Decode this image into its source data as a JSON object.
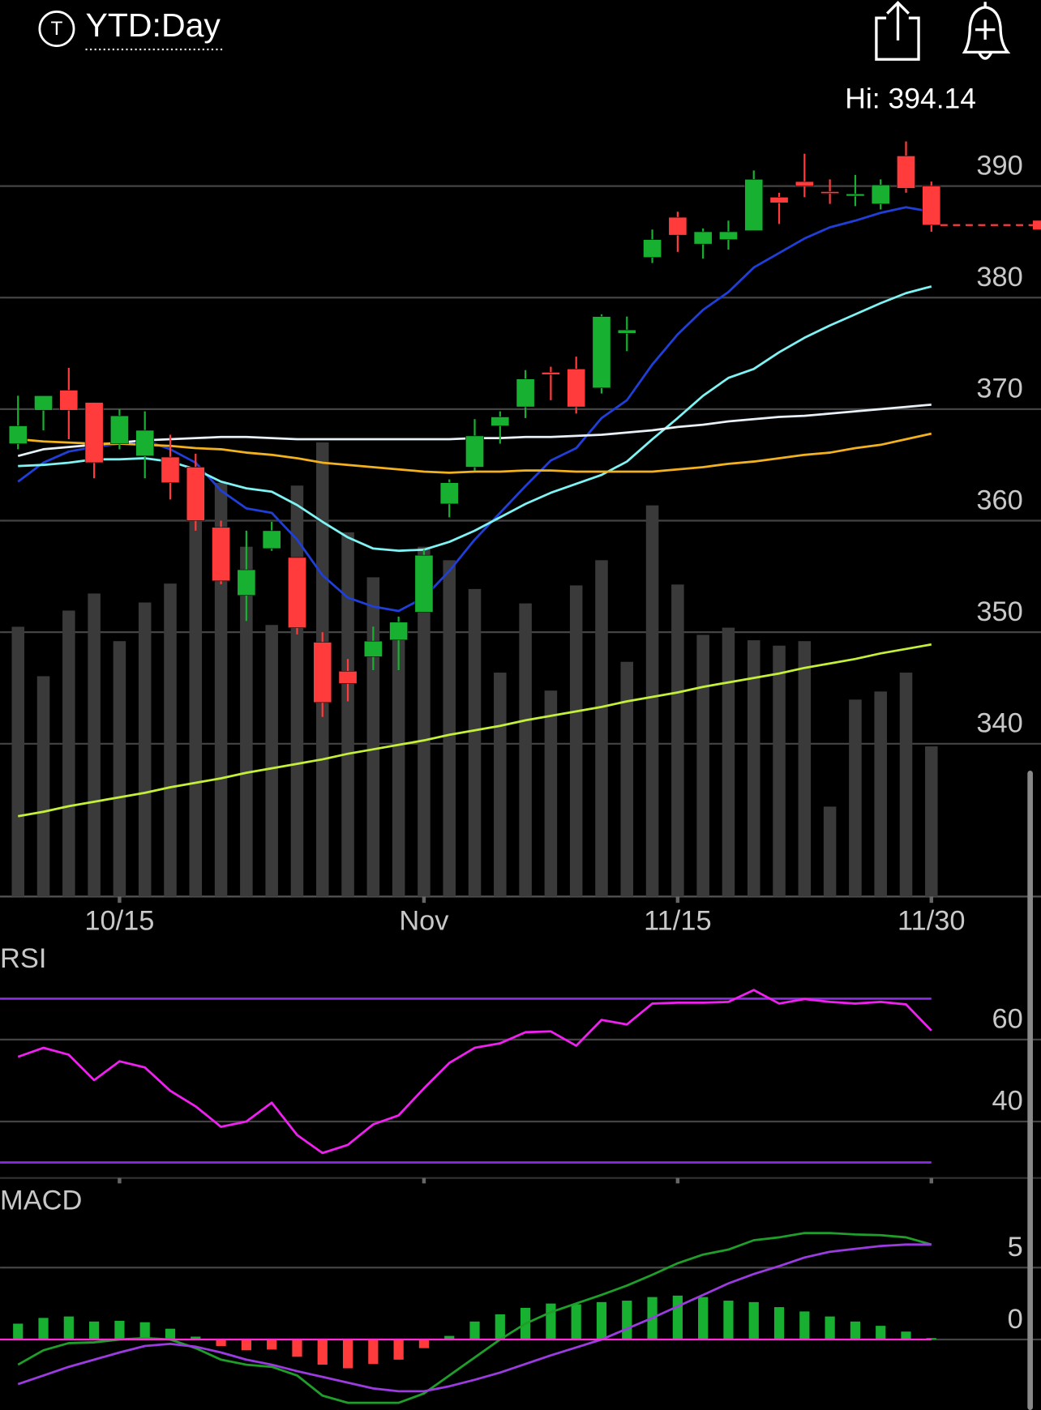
{
  "header": {
    "icon_label": "T",
    "title": "YTD:Day",
    "high_label": "Hi: 394.14"
  },
  "chart_data": [
    {
      "type": "candlestick",
      "categories": [
        null,
        null,
        null,
        null,
        "10/15",
        null,
        null,
        null,
        null,
        null,
        null,
        null,
        null,
        null,
        null,
        null,
        "Nov",
        null,
        null,
        null,
        null,
        null,
        null,
        null,
        null,
        null,
        "11/15",
        null,
        null,
        null,
        null,
        null,
        null,
        null,
        null,
        null,
        "11/30"
      ],
      "open": [
        366.9,
        369.9,
        371.7,
        370.6,
        366.9,
        365.8,
        365.7,
        364.8,
        359.4,
        353.3,
        357.5,
        356.7,
        349.1,
        346.5,
        347.8,
        349.3,
        351.8,
        361.5,
        364.8,
        368.5,
        370.2,
        373.3,
        373.6,
        371.9,
        376.8,
        383.6,
        387.2,
        384.8,
        385.2,
        386.0,
        389.0,
        390.4,
        389.5,
        389.1,
        388.4,
        392.7,
        390.0
      ],
      "high": [
        371.2,
        371.2,
        373.7,
        370.6,
        370.0,
        369.8,
        367.7,
        366.0,
        360.0,
        359.1,
        359.9,
        356.7,
        350.0,
        347.6,
        350.5,
        351.4,
        357.4,
        363.7,
        369.1,
        369.8,
        373.5,
        373.8,
        374.7,
        378.5,
        378.3,
        386.1,
        387.7,
        386.2,
        386.9,
        391.4,
        389.4,
        392.9,
        390.6,
        391.0,
        390.6,
        394.0,
        390.4
      ],
      "low": [
        366.4,
        368.1,
        367.3,
        363.8,
        366.4,
        363.8,
        361.9,
        359.1,
        354.3,
        351.0,
        357.3,
        349.8,
        342.4,
        343.8,
        346.6,
        346.6,
        351.8,
        360.3,
        364.5,
        366.9,
        369.2,
        370.8,
        369.6,
        371.4,
        375.2,
        383.1,
        384.1,
        383.5,
        384.3,
        386.0,
        386.6,
        389.0,
        388.4,
        388.2,
        387.9,
        389.4,
        385.9
      ],
      "close": [
        368.5,
        371.2,
        369.9,
        365.2,
        369.4,
        368.1,
        363.4,
        360.0,
        354.6,
        355.6,
        359.1,
        350.4,
        343.7,
        345.4,
        349.2,
        350.9,
        356.9,
        363.4,
        367.6,
        369.3,
        372.7,
        373.1,
        370.2,
        378.3,
        377.1,
        385.2,
        385.6,
        385.9,
        385.9,
        390.6,
        388.5,
        390.0,
        389.4,
        389.3,
        390.1,
        389.8,
        386.5
      ],
      "up_color": "#17b030",
      "down_color": "#ff3b3b",
      "ylim": [
        326.3,
        396.2
      ],
      "yticks": [
        340,
        350,
        360,
        370,
        380,
        390
      ],
      "grid": true,
      "series": [
        {
          "color": "#1f3fd8",
          "values": [
            363.5,
            365.2,
            366.2,
            366.6,
            366.9,
            367.2,
            366.4,
            365.2,
            362.7,
            361.1,
            360.7,
            358.3,
            355.1,
            353.1,
            352.3,
            351.9,
            353.1,
            355.5,
            358.3,
            360.7,
            363.1,
            365.4,
            366.5,
            369.2,
            370.8,
            374.0,
            376.7,
            378.9,
            380.5,
            382.7,
            384.0,
            385.3,
            386.3,
            386.9,
            387.6,
            388.1,
            387.7
          ]
        },
        {
          "color": "#7ff3f3",
          "values": [
            364.9,
            365.0,
            365.2,
            365.5,
            365.5,
            365.6,
            365.3,
            364.6,
            363.5,
            362.9,
            362.6,
            361.4,
            359.9,
            358.5,
            357.5,
            357.3,
            357.4,
            358.1,
            359.1,
            360.3,
            361.5,
            362.5,
            363.3,
            364.1,
            365.3,
            367.3,
            369.2,
            371.2,
            372.8,
            373.6,
            375.1,
            376.4,
            377.5,
            378.5,
            379.5,
            380.4,
            381.0
          ]
        },
        {
          "color": "#e8f0f8",
          "values": [
            365.8,
            366.4,
            366.6,
            366.8,
            367.0,
            367.2,
            367.3,
            367.4,
            367.5,
            367.5,
            367.4,
            367.3,
            367.3,
            367.3,
            367.3,
            367.3,
            367.3,
            367.3,
            367.4,
            367.4,
            367.5,
            367.5,
            367.6,
            367.7,
            367.9,
            368.1,
            368.4,
            368.6,
            368.9,
            369.1,
            369.3,
            369.4,
            369.6,
            369.8,
            370.0,
            370.2,
            370.4
          ]
        },
        {
          "color": "#f2b21f",
          "values": [
            367.3,
            367.1,
            367.0,
            366.9,
            366.9,
            366.8,
            366.7,
            366.5,
            366.4,
            366.1,
            365.9,
            365.6,
            365.2,
            365.0,
            364.8,
            364.6,
            364.4,
            364.3,
            364.4,
            364.4,
            364.5,
            364.5,
            364.4,
            364.4,
            364.4,
            364.4,
            364.6,
            364.8,
            365.1,
            365.3,
            365.6,
            365.9,
            366.1,
            366.5,
            366.8,
            367.3,
            367.8
          ]
        },
        {
          "color": "#c4f03a",
          "values": [
            333.5,
            333.9,
            334.4,
            334.8,
            335.2,
            335.6,
            336.1,
            336.5,
            336.9,
            337.4,
            337.8,
            338.2,
            338.6,
            339.1,
            339.5,
            339.9,
            340.3,
            340.8,
            341.2,
            341.6,
            342.1,
            342.5,
            342.9,
            343.3,
            343.8,
            344.2,
            344.6,
            345.1,
            345.5,
            345.9,
            346.3,
            346.8,
            347.2,
            347.6,
            348.1,
            348.5,
            348.9
          ]
        }
      ]
    },
    {
      "type": "bar",
      "color": "#3a3a3a",
      "ylim": [
        0,
        867
      ],
      "values": [
        300,
        245,
        318,
        337,
        284,
        327,
        348,
        431,
        460,
        389,
        302,
        457,
        505,
        405,
        355,
        304,
        389,
        374,
        342,
        249,
        326,
        229,
        346,
        374,
        261,
        435,
        347,
        291,
        299,
        285,
        279,
        284,
        100,
        219,
        228,
        249,
        167
      ]
    },
    {
      "type": "line",
      "title": "RSI",
      "color": "#f020f0",
      "level_color": "#8a2be2",
      "levels": [
        30,
        70
      ],
      "ylim": [
        26.2,
        81.1
      ],
      "yticks": [
        40,
        60
      ],
      "grid": true,
      "values": [
        55.8,
        58.0,
        56.3,
        50.1,
        54.7,
        53.2,
        47.5,
        43.7,
        38.7,
        40.0,
        44.6,
        36.7,
        32.3,
        34.3,
        39.3,
        41.5,
        48.1,
        54.3,
        58.0,
        59.1,
        61.8,
        62.0,
        58.5,
        64.8,
        63.7,
        68.8,
        69.0,
        69.0,
        69.2,
        72.1,
        68.8,
        69.9,
        69.2,
        68.8,
        69.2,
        68.6,
        62.2
      ]
    },
    {
      "type": "macd",
      "title": "MACD",
      "ylim": [
        -4.9,
        10.6
      ],
      "yticks": [
        0,
        5
      ],
      "grid": true,
      "up_color": "#17b030",
      "down_color": "#ff3b3b",
      "zero_color": "#ff2bd6",
      "histogram": [
        1.1,
        1.5,
        1.6,
        1.25,
        1.3,
        1.2,
        0.75,
        0.2,
        -0.45,
        -0.75,
        -0.7,
        -1.2,
        -1.75,
        -2.0,
        -1.7,
        -1.4,
        -0.6,
        0.25,
        1.25,
        1.75,
        2.2,
        2.5,
        2.45,
        2.6,
        2.7,
        2.95,
        3.05,
        2.95,
        2.7,
        2.6,
        2.25,
        1.95,
        1.6,
        1.25,
        0.95,
        0.55,
        0.1
      ],
      "series": [
        {
          "color": "#1f9e2a",
          "values": [
            -1.75,
            -0.75,
            -0.25,
            -0.2,
            0,
            0.1,
            0,
            -0.6,
            -1.4,
            -1.75,
            -1.9,
            -2.5,
            -3.9,
            -4.4,
            -4.4,
            -4.4,
            -3.75,
            -2.5,
            -1.25,
            0,
            1.1,
            1.9,
            2.5,
            3.1,
            3.75,
            4.5,
            5.3,
            5.9,
            6.25,
            6.9,
            7.1,
            7.4,
            7.4,
            7.3,
            7.25,
            7.1,
            6.6
          ]
        },
        {
          "color": "#9b3be0",
          "values": [
            -3.1,
            -2.5,
            -1.9,
            -1.4,
            -0.9,
            -0.45,
            -0.3,
            -0.5,
            -0.9,
            -1.4,
            -1.75,
            -2.2,
            -2.6,
            -3.0,
            -3.4,
            -3.6,
            -3.6,
            -3.25,
            -2.8,
            -2.3,
            -1.7,
            -1.1,
            -0.55,
            0,
            0.75,
            1.5,
            2.3,
            3.1,
            3.9,
            4.55,
            5.1,
            5.7,
            6.1,
            6.3,
            6.5,
            6.6,
            6.6
          ]
        }
      ]
    }
  ]
}
